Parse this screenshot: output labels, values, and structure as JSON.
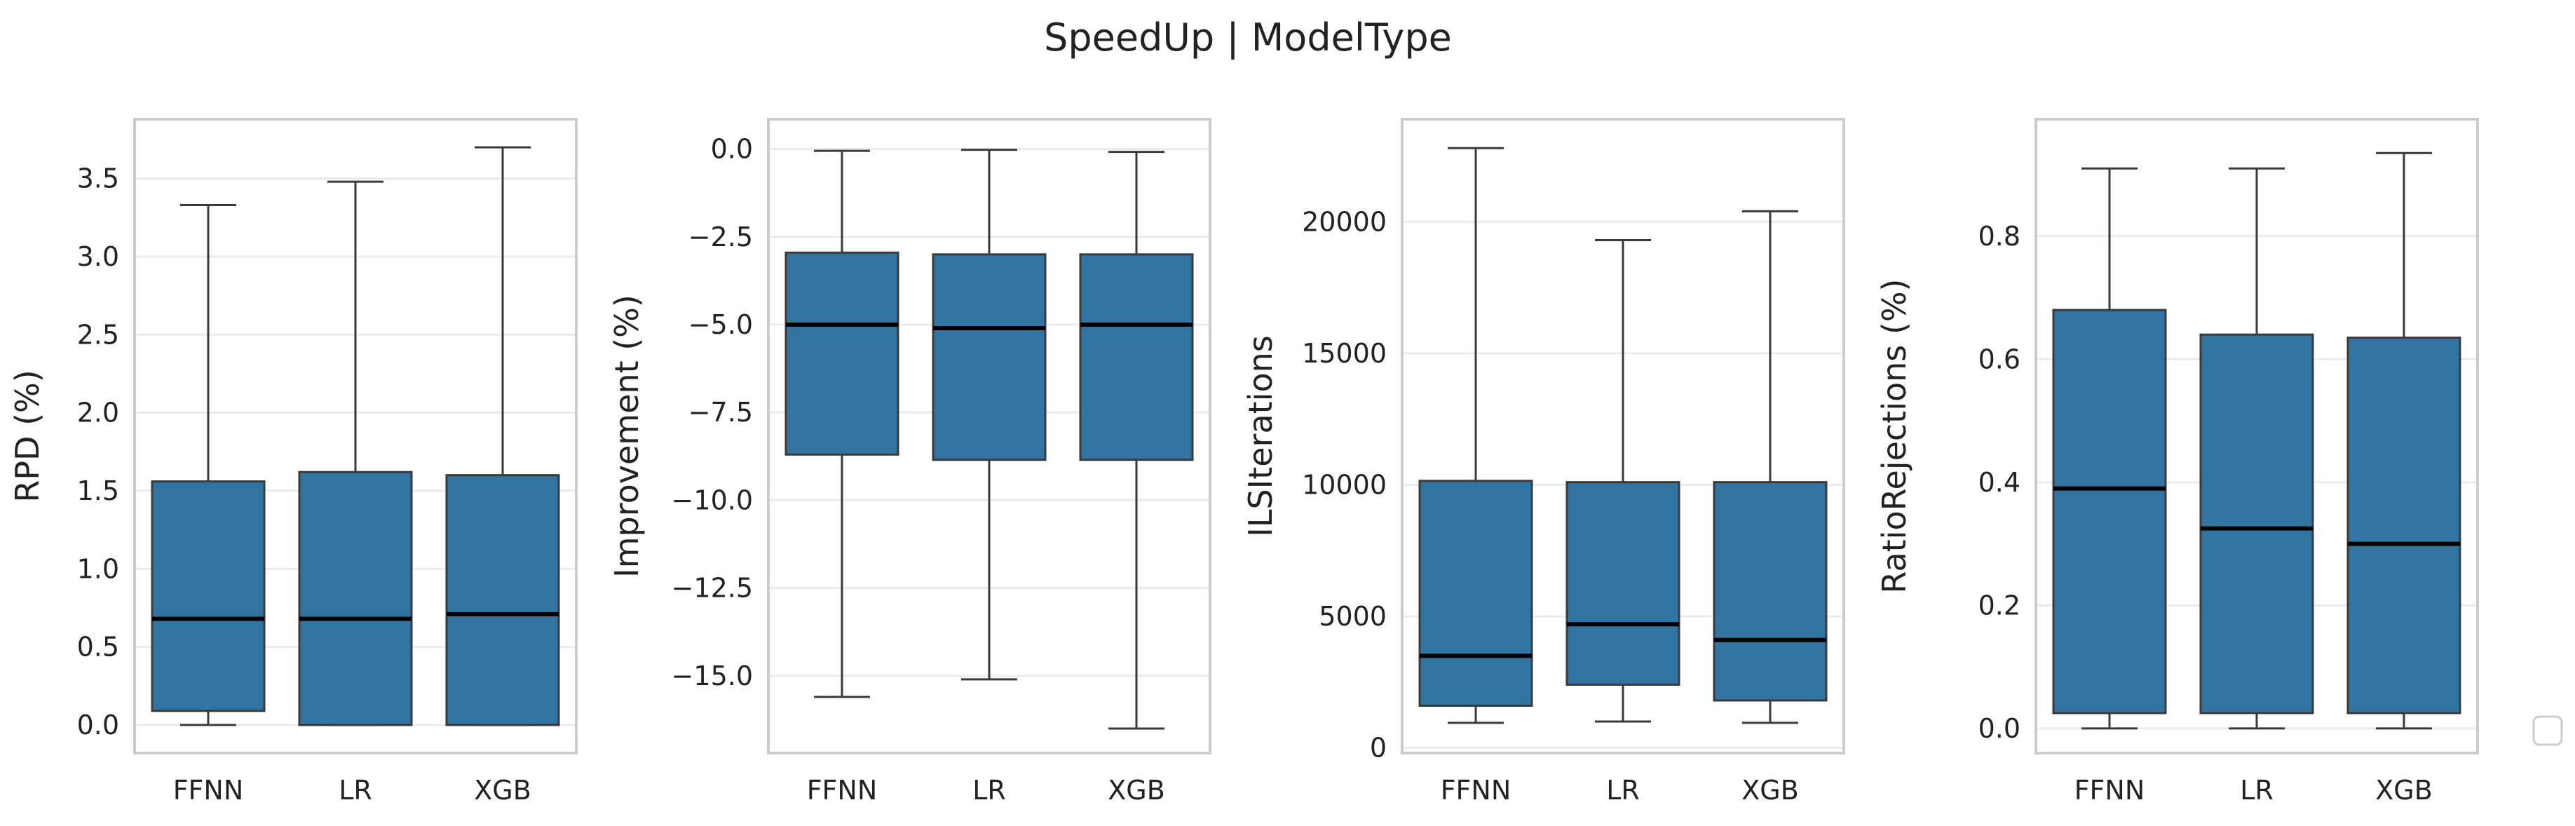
{
  "figure": {
    "title": "SpeedUp | ModelType"
  },
  "colors": {
    "box_fill": "#3274a1",
    "box_edge": "#3a3a3a",
    "median": "#000000",
    "frame": "#cccccc",
    "grid": "#ebebeb",
    "legend_border": "#cccccc"
  },
  "chart_data": [
    {
      "type": "box",
      "xlabel": "",
      "ylabel": "RPD (%)",
      "categories": [
        "FFNN",
        "LR",
        "XGB"
      ],
      "ylim": [
        -0.18,
        3.88
      ],
      "yticks": [
        0.0,
        0.5,
        1.0,
        1.5,
        2.0,
        2.5,
        3.0,
        3.5
      ],
      "ytick_labels": [
        "0.0",
        "0.5",
        "1.0",
        "1.5",
        "2.0",
        "2.5",
        "3.0",
        "3.5"
      ],
      "grid": true,
      "boxes": [
        {
          "category": "FFNN",
          "whisker_low": 0.0,
          "q1": 0.09,
          "median": 0.68,
          "q3": 1.56,
          "whisker_high": 3.33
        },
        {
          "category": "LR",
          "whisker_low": 0.0,
          "q1": 0.0,
          "median": 0.68,
          "q3": 1.62,
          "whisker_high": 3.48
        },
        {
          "category": "XGB",
          "whisker_low": 0.0,
          "q1": 0.0,
          "median": 0.71,
          "q3": 1.6,
          "whisker_high": 3.7
        }
      ]
    },
    {
      "type": "box",
      "xlabel": "",
      "ylabel": "Improvement (%)",
      "categories": [
        "FFNN",
        "LR",
        "XGB"
      ],
      "ylim": [
        -17.2,
        0.85
      ],
      "yticks": [
        0.0,
        -2.5,
        -5.0,
        -7.5,
        -10.0,
        -12.5,
        -15.0
      ],
      "ytick_labels": [
        "0.0",
        "−2.5",
        "−5.0",
        "−7.5",
        "−10.0",
        "−12.5",
        "−15.0"
      ],
      "grid": true,
      "boxes": [
        {
          "category": "FFNN",
          "whisker_low": -15.6,
          "q1": -8.7,
          "median": -5.0,
          "q3": -2.95,
          "whisker_high": -0.05
        },
        {
          "category": "LR",
          "whisker_low": -15.1,
          "q1": -8.85,
          "median": -5.1,
          "q3": -3.0,
          "whisker_high": -0.02
        },
        {
          "category": "XGB",
          "whisker_low": -16.5,
          "q1": -8.85,
          "median": -5.0,
          "q3": -3.0,
          "whisker_high": -0.08
        }
      ]
    },
    {
      "type": "box",
      "xlabel": "",
      "ylabel": "ILSIterations",
      "categories": [
        "FFNN",
        "LR",
        "XGB"
      ],
      "ylim": [
        -200,
        23900
      ],
      "yticks": [
        0,
        5000,
        10000,
        15000,
        20000
      ],
      "ytick_labels": [
        "0",
        "5000",
        "10000",
        "15000",
        "20000"
      ],
      "grid": true,
      "boxes": [
        {
          "category": "FFNN",
          "whisker_low": 950,
          "q1": 1600,
          "median": 3500,
          "q3": 10150,
          "whisker_high": 22800
        },
        {
          "category": "LR",
          "whisker_low": 1000,
          "q1": 2400,
          "median": 4700,
          "q3": 10100,
          "whisker_high": 19300
        },
        {
          "category": "XGB",
          "whisker_low": 950,
          "q1": 1800,
          "median": 4100,
          "q3": 10100,
          "whisker_high": 20400
        }
      ]
    },
    {
      "type": "box",
      "xlabel": "",
      "ylabel": "RatioRejections (%)",
      "categories": [
        "FFNN",
        "LR",
        "XGB"
      ],
      "ylim": [
        -0.04,
        0.99
      ],
      "yticks": [
        0.0,
        0.2,
        0.4,
        0.6,
        0.8
      ],
      "ytick_labels": [
        "0.0",
        "0.2",
        "0.4",
        "0.6",
        "0.8"
      ],
      "grid": true,
      "boxes": [
        {
          "category": "FFNN",
          "whisker_low": 0.0,
          "q1": 0.025,
          "median": 0.39,
          "q3": 0.68,
          "whisker_high": 0.91
        },
        {
          "category": "LR",
          "whisker_low": 0.0,
          "q1": 0.025,
          "median": 0.325,
          "q3": 0.64,
          "whisker_high": 0.91
        },
        {
          "category": "XGB",
          "whisker_low": 0.0,
          "q1": 0.025,
          "median": 0.3,
          "q3": 0.635,
          "whisker_high": 0.935
        }
      ]
    }
  ],
  "legend": {
    "placement": "right",
    "entries": []
  }
}
